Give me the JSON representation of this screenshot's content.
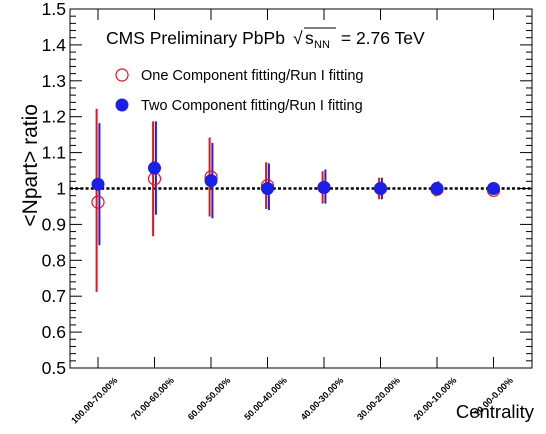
{
  "chart_data": {
    "type": "scatter",
    "title": "CMS Preliminary PbPb",
    "energy_label": {
      "sqrt_symbol": "√",
      "s": "s",
      "subscript": "NN",
      "rest": " = 2.76 TeV"
    },
    "xlabel": "Centrality",
    "ylabel": "<Npart> ratio",
    "categories": [
      "100.00-70.00%",
      "70.00-60.00%",
      "60.00-50.00%",
      "50.00-40.00%",
      "40.00-30.00%",
      "30.00-20.00%",
      "20.00-10.00%",
      "10.00-0.00%"
    ],
    "ylim": [
      0.5,
      1.5
    ],
    "yticks": [
      "0.5",
      "0.6",
      "0.7",
      "0.8",
      "0.9",
      "1",
      "1.1",
      "1.2",
      "1.3",
      "1.4",
      "1.5"
    ],
    "reference_line": 1.0,
    "legend_position": "top-left",
    "series": [
      {
        "name": "One Component fitting/Run I fitting",
        "marker": "open-circle",
        "color": "#e8111d",
        "values": [
          0.962,
          1.027,
          1.032,
          1.008,
          1.003,
          1.0,
          0.998,
          0.995
        ],
        "err_low": [
          0.25,
          0.16,
          0.11,
          0.065,
          0.045,
          0.03,
          0.02,
          0.012
        ],
        "err_high": [
          0.26,
          0.16,
          0.11,
          0.065,
          0.045,
          0.03,
          0.02,
          0.012
        ]
      },
      {
        "name": "Two Component fitting/Run I fitting",
        "marker": "filled-circle",
        "color": "#1a20e8",
        "values": [
          1.012,
          1.057,
          1.022,
          1.0,
          1.003,
          1.0,
          1.0,
          1.0
        ],
        "err_low": [
          0.17,
          0.13,
          0.105,
          0.06,
          0.045,
          0.03,
          0.02,
          0.01
        ],
        "err_high": [
          0.17,
          0.13,
          0.105,
          0.07,
          0.05,
          0.03,
          0.02,
          0.01
        ]
      }
    ]
  }
}
